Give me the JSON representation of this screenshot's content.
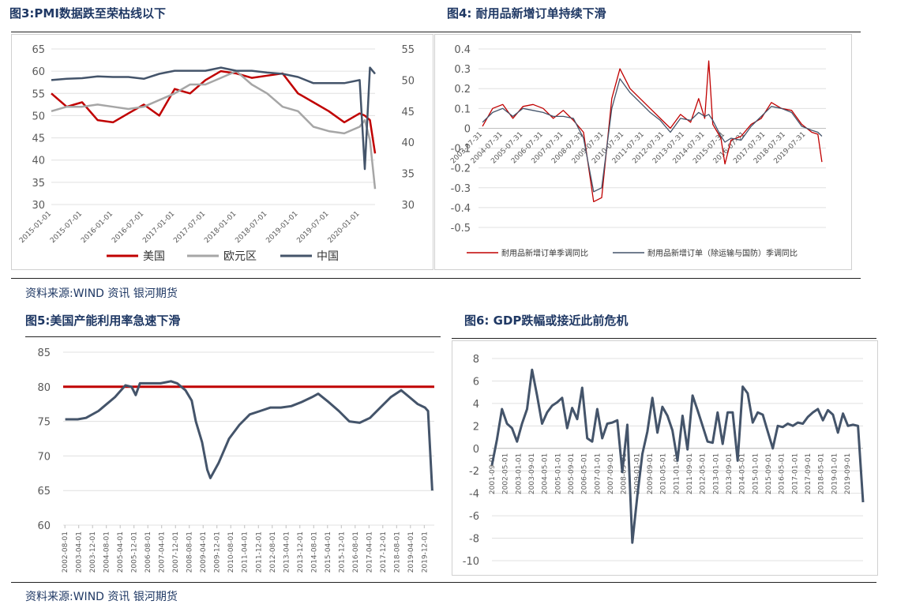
{
  "figures": {
    "fig3": {
      "title": "图3:PMI数据跌至荣枯线以下"
    },
    "fig4": {
      "title": "图4:  耐用品新增订单持续下滑"
    },
    "fig5": {
      "title": "图5:美国产能利用率急速下滑"
    },
    "fig6": {
      "title": "图6: GDP跌幅或接近此前危机"
    }
  },
  "sources": {
    "top": "资料来源:WIND 资讯   银河期货",
    "bottom": "资料来源:WIND 资讯   银河期货"
  },
  "chart_data": [
    {
      "id": "fig3",
      "type": "line",
      "x": [
        "2015-01-01",
        "2015-04-01",
        "2015-07-01",
        "2015-10-01",
        "2016-01-01",
        "2016-04-01",
        "2016-07-01",
        "2016-10-01",
        "2017-01-01",
        "2017-04-01",
        "2017-07-01",
        "2017-10-01",
        "2018-01-01",
        "2018-04-01",
        "2018-07-01",
        "2018-10-01",
        "2019-01-01",
        "2019-04-01",
        "2019-07-01",
        "2019-10-01",
        "2020-01-01",
        "2020-02-01",
        "2020-03-01",
        "2020-04-01"
      ],
      "xticks": [
        "2015-01-01",
        "2015-07-01",
        "2016-01-01",
        "2016-07-01",
        "2017-01-01",
        "2017-07-01",
        "2018-01-01",
        "2018-07-01",
        "2019-01-01",
        "2019-07-01",
        "2020-01-01"
      ],
      "ylim": [
        30,
        65
      ],
      "yticks": [
        30,
        35,
        40,
        45,
        50,
        55,
        60,
        65
      ],
      "y2lim": [
        30,
        55
      ],
      "y2ticks": [
        30,
        35,
        40,
        45,
        50,
        55
      ],
      "series": [
        {
          "name": "美国",
          "color": "#c00000",
          "axis": "left",
          "values": [
            55,
            52,
            53,
            49,
            48.5,
            50.5,
            52.5,
            50,
            56,
            55,
            58,
            60,
            59.5,
            58.5,
            59,
            59.5,
            55,
            53,
            51,
            48.5,
            50.5,
            50,
            49,
            41.5
          ]
        },
        {
          "name": "欧元区",
          "color": "#a6a6a6",
          "axis": "left",
          "values": [
            51,
            52,
            52,
            52.5,
            52,
            51.5,
            52,
            53.5,
            55,
            57,
            57,
            58.5,
            60,
            57,
            55,
            52,
            51,
            47.5,
            46.5,
            46,
            47.5,
            49,
            44.5,
            33.5
          ]
        },
        {
          "name": "中国",
          "color": "#44546a",
          "axis": "right",
          "values": [
            50,
            50.2,
            50.3,
            50.6,
            50.5,
            50.5,
            50.2,
            51,
            51.5,
            51.5,
            51.5,
            52,
            51.5,
            51.5,
            51.2,
            51,
            50.5,
            49.5,
            49.5,
            49.5,
            50,
            35.7,
            52,
            51
          ]
        }
      ]
    },
    {
      "id": "fig4",
      "type": "line",
      "xticks": [
        "2003-07-31",
        "2004-07-31",
        "2005-07-31",
        "2006-07-31",
        "2007-07-31",
        "2008-07-31",
        "2009-07-31",
        "2010-07-31",
        "2011-07-31",
        "2012-07-31",
        "2013-07-31",
        "2014-07-31",
        "2015-07-31",
        "2016-07-31",
        "2017-07-31",
        "2018-07-31",
        "2019-07-31"
      ],
      "ylim": [
        -0.5,
        0.4
      ],
      "yticks": [
        -0.5,
        -0.4,
        -0.3,
        -0.2,
        -0.1,
        0,
        0.1,
        0.2,
        0.3,
        0.4
      ],
      "series": [
        {
          "name": "耐用品新增订单季调同比",
          "color": "#c00000",
          "points": [
            [
              2003.5,
              0.01
            ],
            [
              2004,
              0.1
            ],
            [
              2004.5,
              0.12
            ],
            [
              2005,
              0.05
            ],
            [
              2005.5,
              0.11
            ],
            [
              2006,
              0.12
            ],
            [
              2006.5,
              0.1
            ],
            [
              2007,
              0.05
            ],
            [
              2007.5,
              0.09
            ],
            [
              2008,
              0.04
            ],
            [
              2008.5,
              -0.02
            ],
            [
              2009,
              -0.37
            ],
            [
              2009.4,
              -0.35
            ],
            [
              2009.9,
              0.15
            ],
            [
              2010.3,
              0.3
            ],
            [
              2010.8,
              0.2
            ],
            [
              2011.3,
              0.15
            ],
            [
              2011.8,
              0.1
            ],
            [
              2012.3,
              0.05
            ],
            [
              2012.8,
              0
            ],
            [
              2013.3,
              0.07
            ],
            [
              2013.8,
              0.03
            ],
            [
              2014.2,
              0.15
            ],
            [
              2014.5,
              0.05
            ],
            [
              2014.7,
              0.34
            ],
            [
              2014.9,
              0.02
            ],
            [
              2015.3,
              -0.05
            ],
            [
              2015.5,
              -0.18
            ],
            [
              2015.8,
              -0.06
            ],
            [
              2016.3,
              -0.04
            ],
            [
              2016.8,
              0.02
            ],
            [
              2017.3,
              0.05
            ],
            [
              2017.8,
              0.13
            ],
            [
              2018.3,
              0.1
            ],
            [
              2018.8,
              0.09
            ],
            [
              2019.3,
              0.02
            ],
            [
              2019.8,
              -0.02
            ],
            [
              2020.1,
              -0.03
            ],
            [
              2020.3,
              -0.17
            ]
          ]
        },
        {
          "name": "耐用品新增订单（除运输与国防）季调同比",
          "color": "#44546a",
          "points": [
            [
              2003.5,
              0.03
            ],
            [
              2004,
              0.08
            ],
            [
              2004.5,
              0.1
            ],
            [
              2005,
              0.06
            ],
            [
              2005.5,
              0.1
            ],
            [
              2006,
              0.09
            ],
            [
              2006.5,
              0.08
            ],
            [
              2007,
              0.06
            ],
            [
              2007.5,
              0.06
            ],
            [
              2008,
              0.05
            ],
            [
              2008.5,
              -0.05
            ],
            [
              2009,
              -0.32
            ],
            [
              2009.4,
              -0.3
            ],
            [
              2009.9,
              0.1
            ],
            [
              2010.3,
              0.25
            ],
            [
              2010.8,
              0.18
            ],
            [
              2011.3,
              0.13
            ],
            [
              2011.8,
              0.08
            ],
            [
              2012.3,
              0.04
            ],
            [
              2012.8,
              -0.02
            ],
            [
              2013.3,
              0.05
            ],
            [
              2013.8,
              0.04
            ],
            [
              2014.2,
              0.08
            ],
            [
              2014.5,
              0.06
            ],
            [
              2014.7,
              0.07
            ],
            [
              2014.9,
              0.04
            ],
            [
              2015.3,
              -0.04
            ],
            [
              2015.5,
              -0.07
            ],
            [
              2015.8,
              -0.05
            ],
            [
              2016.3,
              -0.06
            ],
            [
              2016.8,
              0.01
            ],
            [
              2017.3,
              0.06
            ],
            [
              2017.8,
              0.11
            ],
            [
              2018.3,
              0.1
            ],
            [
              2018.8,
              0.08
            ],
            [
              2019.3,
              0.01
            ],
            [
              2019.8,
              -0.01
            ],
            [
              2020.1,
              -0.02
            ],
            [
              2020.3,
              -0.04
            ]
          ]
        }
      ]
    },
    {
      "id": "fig5",
      "type": "line",
      "xticks": [
        "2002-08-01",
        "2003-04-01",
        "2003-12-01",
        "2004-08-01",
        "2005-04-01",
        "2005-12-01",
        "2006-08-01",
        "2007-04-01",
        "2007-12-01",
        "2008-08-01",
        "2009-04-01",
        "2009-12-01",
        "2010-08-01",
        "2011-04-01",
        "2011-12-01",
        "2012-08-01",
        "2013-04-01",
        "2013-12-01",
        "2014-08-01",
        "2015-04-01",
        "2015-12-01",
        "2016-08-01",
        "2017-04-01",
        "2017-12-01",
        "2018-08-01",
        "2019-04-01",
        "2019-12-01"
      ],
      "ylim": [
        60,
        85
      ],
      "yticks": [
        60,
        65,
        70,
        75,
        80,
        85
      ],
      "reference": 80,
      "reference_color": "#c00000",
      "series": [
        {
          "name": "产能利用率",
          "color": "#44546a",
          "points": [
            [
              2002.6,
              75.3
            ],
            [
              2003.2,
              75.3
            ],
            [
              2003.6,
              75.5
            ],
            [
              2004.2,
              76.5
            ],
            [
              2004.6,
              77.5
            ],
            [
              2005,
              78.5
            ],
            [
              2005.5,
              80.2
            ],
            [
              2005.8,
              80
            ],
            [
              2006,
              78.8
            ],
            [
              2006.2,
              80.5
            ],
            [
              2006.8,
              80.5
            ],
            [
              2007.2,
              80.5
            ],
            [
              2007.7,
              80.8
            ],
            [
              2008,
              80.5
            ],
            [
              2008.4,
              79.5
            ],
            [
              2008.7,
              78
            ],
            [
              2008.9,
              75
            ],
            [
              2009.2,
              72
            ],
            [
              2009.45,
              68
            ],
            [
              2009.6,
              66.8
            ],
            [
              2010,
              69
            ],
            [
              2010.5,
              72.5
            ],
            [
              2011,
              74.5
            ],
            [
              2011.5,
              76
            ],
            [
              2012,
              76.5
            ],
            [
              2012.5,
              77
            ],
            [
              2013,
              77
            ],
            [
              2013.5,
              77.2
            ],
            [
              2014,
              77.8
            ],
            [
              2014.5,
              78.5
            ],
            [
              2014.8,
              79
            ],
            [
              2015.3,
              77.8
            ],
            [
              2015.8,
              76.5
            ],
            [
              2016.3,
              75
            ],
            [
              2016.8,
              74.8
            ],
            [
              2017.3,
              75.5
            ],
            [
              2017.8,
              77
            ],
            [
              2018.3,
              78.5
            ],
            [
              2018.8,
              79.5
            ],
            [
              2019.2,
              78.5
            ],
            [
              2019.6,
              77.5
            ],
            [
              2019.95,
              77
            ],
            [
              2020.1,
              76.5
            ],
            [
              2020.3,
              65
            ]
          ]
        }
      ]
    },
    {
      "id": "fig6",
      "type": "line",
      "xticks": [
        "2001-09-01",
        "2002-05-01",
        "2003-01-01",
        "2003-09-01",
        "2004-05-01",
        "2005-01-01",
        "2005-09-01",
        "2006-05-01",
        "2007-01-01",
        "2007-09-01",
        "2008-05-01",
        "2009-01-01",
        "2009-09-01",
        "2010-05-01",
        "2011-01-01",
        "2011-09-01",
        "2012-05-01",
        "2013-01-01",
        "2013-09-01",
        "2014-05-01",
        "2015-01-01",
        "2015-09-01",
        "2016-05-01",
        "2017-01-01",
        "2017-09-01",
        "2018-05-01",
        "2019-01-01",
        "2019-09-01"
      ],
      "ylim": [
        -10,
        8
      ],
      "yticks": [
        -10,
        -8,
        -6,
        -4,
        -2,
        0,
        2,
        4,
        6,
        8
      ],
      "series": [
        {
          "name": "GDP",
          "color": "#44546a",
          "values": [
            -1.5,
            0.8,
            3.5,
            2.2,
            1.8,
            0.6,
            2.2,
            3.5,
            7,
            4.7,
            2.2,
            3.2,
            3.8,
            4.1,
            4.5,
            1.8,
            3.6,
            2.6,
            5.4,
            0.9,
            0.6,
            3.5,
            0.9,
            2.2,
            2.3,
            2.5,
            -2.1,
            2.1,
            -8.4,
            -4.2,
            -0.5,
            1.5,
            4.5,
            1.4,
            3.7,
            2.9,
            1.6,
            -1.1,
            2.9,
            -0.1,
            4.7,
            3.4,
            2,
            0.6,
            0.5,
            3.2,
            0.4,
            3.2,
            3.2,
            -1.1,
            5.5,
            4.9,
            2.3,
            3.2,
            3,
            1.5,
            0,
            2,
            1.9,
            2.2,
            2,
            2.3,
            2.2,
            2.8,
            3.2,
            3.5,
            2.5,
            3.4,
            3,
            1.4,
            3.1,
            2,
            2.1,
            2,
            -4.8
          ]
        }
      ]
    }
  ]
}
